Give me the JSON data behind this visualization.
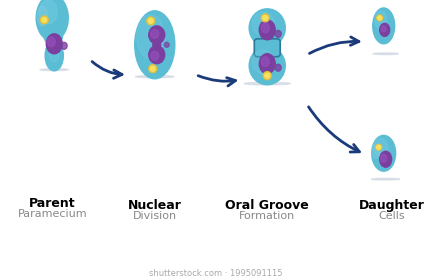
{
  "bg_color": "#ffffff",
  "cell_color": "#5bbdd4",
  "cell_edge_color": "#2a7a9a",
  "cell_inner_color": "#7acfe8",
  "nucleus_color": "#7b3fa0",
  "nucleus_inner_color": "#9b55c0",
  "micronucleus_color": "#e0c040",
  "micronucleus_inner_color": "#f5e060",
  "arrow_color": "#1a3a7a",
  "label_bold": [
    "Parent",
    "Nuclear",
    "Oral Groove",
    "Daughter"
  ],
  "label_gray": [
    "Paramecium",
    "Division",
    "Formation",
    "Cells"
  ],
  "watermark": "shutterstock.com · 1995091115",
  "shadow_color": "#b0bdd0"
}
